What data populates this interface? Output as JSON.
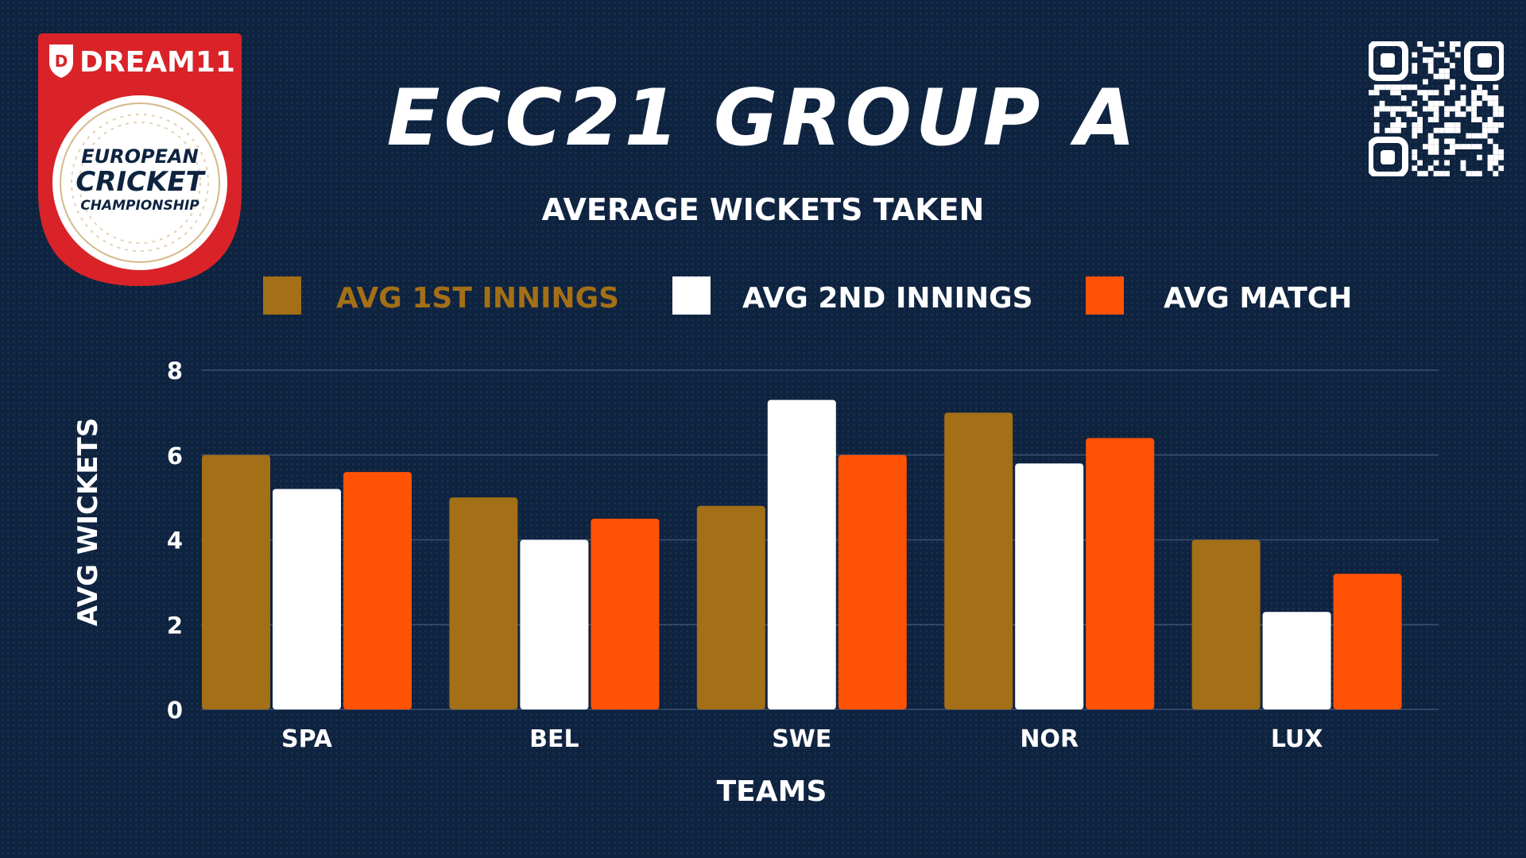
{
  "header": {
    "title": "ECC21 GROUP A",
    "subtitle": "AVERAGE WICKETS TAKEN"
  },
  "logo": {
    "brand": "DREAM11",
    "line1": "EUROPEAN",
    "line2": "CRICKET",
    "line3": "CHAMPIONSHIP"
  },
  "colors": {
    "background": "#0e2340",
    "avg_1st": "#a36f17",
    "avg_2nd": "#ffffff",
    "avg_match": "#ff5205",
    "legend_1st_text": "#a36f17",
    "gridline": "#3b5170"
  },
  "chart_data": {
    "type": "bar",
    "title": "AVERAGE WICKETS TAKEN",
    "xlabel": "TEAMS",
    "ylabel": "AVG WICKETS",
    "categories": [
      "SPA",
      "BEL",
      "SWE",
      "NOR",
      "LUX"
    ],
    "series": [
      {
        "name": "AVG 1ST INNINGS",
        "values": [
          6,
          5,
          4.8,
          7,
          4
        ]
      },
      {
        "name": "AVG 2ND INNINGS",
        "values": [
          5.2,
          4,
          7.3,
          5.8,
          2.3
        ]
      },
      {
        "name": "AVG MATCH",
        "values": [
          5.6,
          4.5,
          6,
          6.4,
          3.2
        ]
      }
    ],
    "ylim": [
      0,
      8
    ],
    "yticks": [
      0,
      2,
      4,
      6,
      8
    ],
    "grid": true,
    "legend_position": "top"
  }
}
